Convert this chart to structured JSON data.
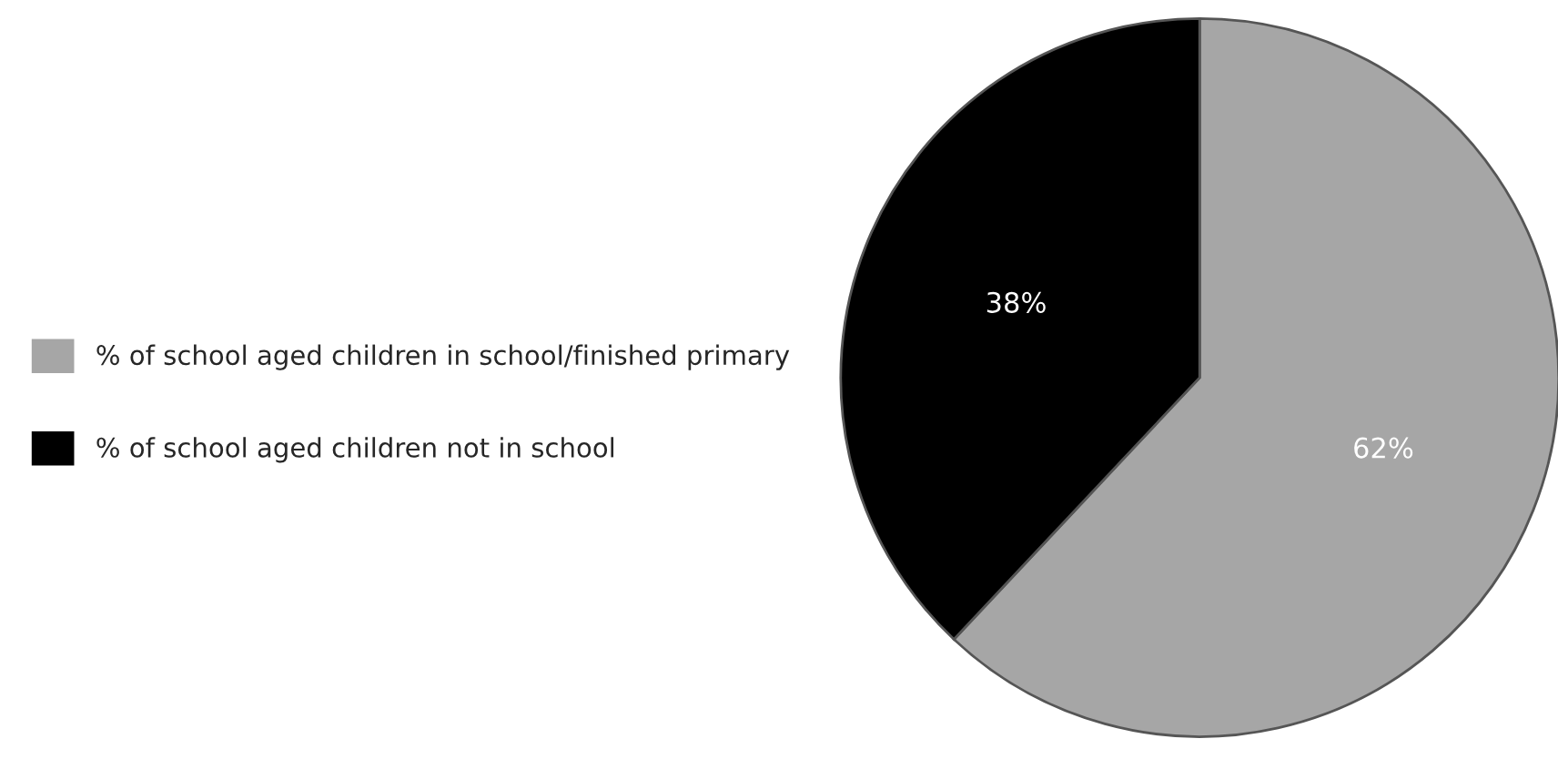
{
  "chart_data": {
    "type": "pie",
    "categories": [
      "% of school aged children in school/finished primary",
      "% of school aged children not in school"
    ],
    "values": [
      62,
      38
    ],
    "colors": [
      "#a6a6a6",
      "#000000"
    ],
    "value_labels": [
      "62%",
      "38%"
    ],
    "legend": "left"
  }
}
